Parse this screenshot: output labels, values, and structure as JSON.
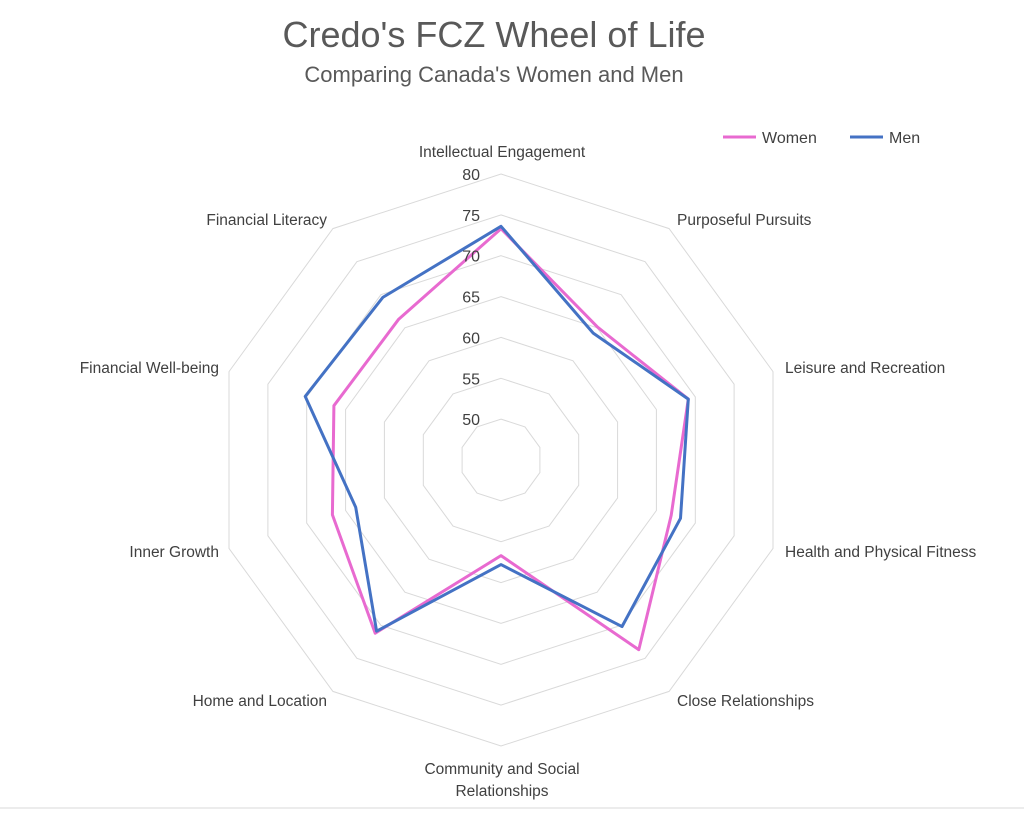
{
  "chart_data": {
    "type": "radar",
    "title": "Credo's FCZ Wheel of Life",
    "subtitle": "Comparing Canada's Women and Men",
    "categories": [
      "Intellectual Engagement",
      "Purposeful Pursuits",
      "Leisure and Recreation",
      "Health and Physical Fitness",
      "Close Relationships",
      "Community and Social Relationships",
      "Home and Location",
      "Inner Growth",
      "Financial Well-being",
      "Financial Literacy"
    ],
    "ticks": [
      "50",
      "55",
      "60",
      "65",
      "70",
      "75",
      "80"
    ],
    "rlim": [
      45,
      80
    ],
    "series": [
      {
        "name": "Women",
        "color": "#e86ad0",
        "values": [
          73.3,
          65.1,
          69.1,
          66.9,
          73.7,
          56.7,
          71.2,
          66.7,
          66.5,
          66.3
        ]
      },
      {
        "name": "Men",
        "color": "#4472c4",
        "values": [
          73.6,
          64.2,
          69.1,
          68.1,
          70.2,
          57.8,
          70.9,
          63.7,
          70.2,
          69.6
        ]
      }
    ],
    "legend_position": "top-right",
    "grid": true
  }
}
